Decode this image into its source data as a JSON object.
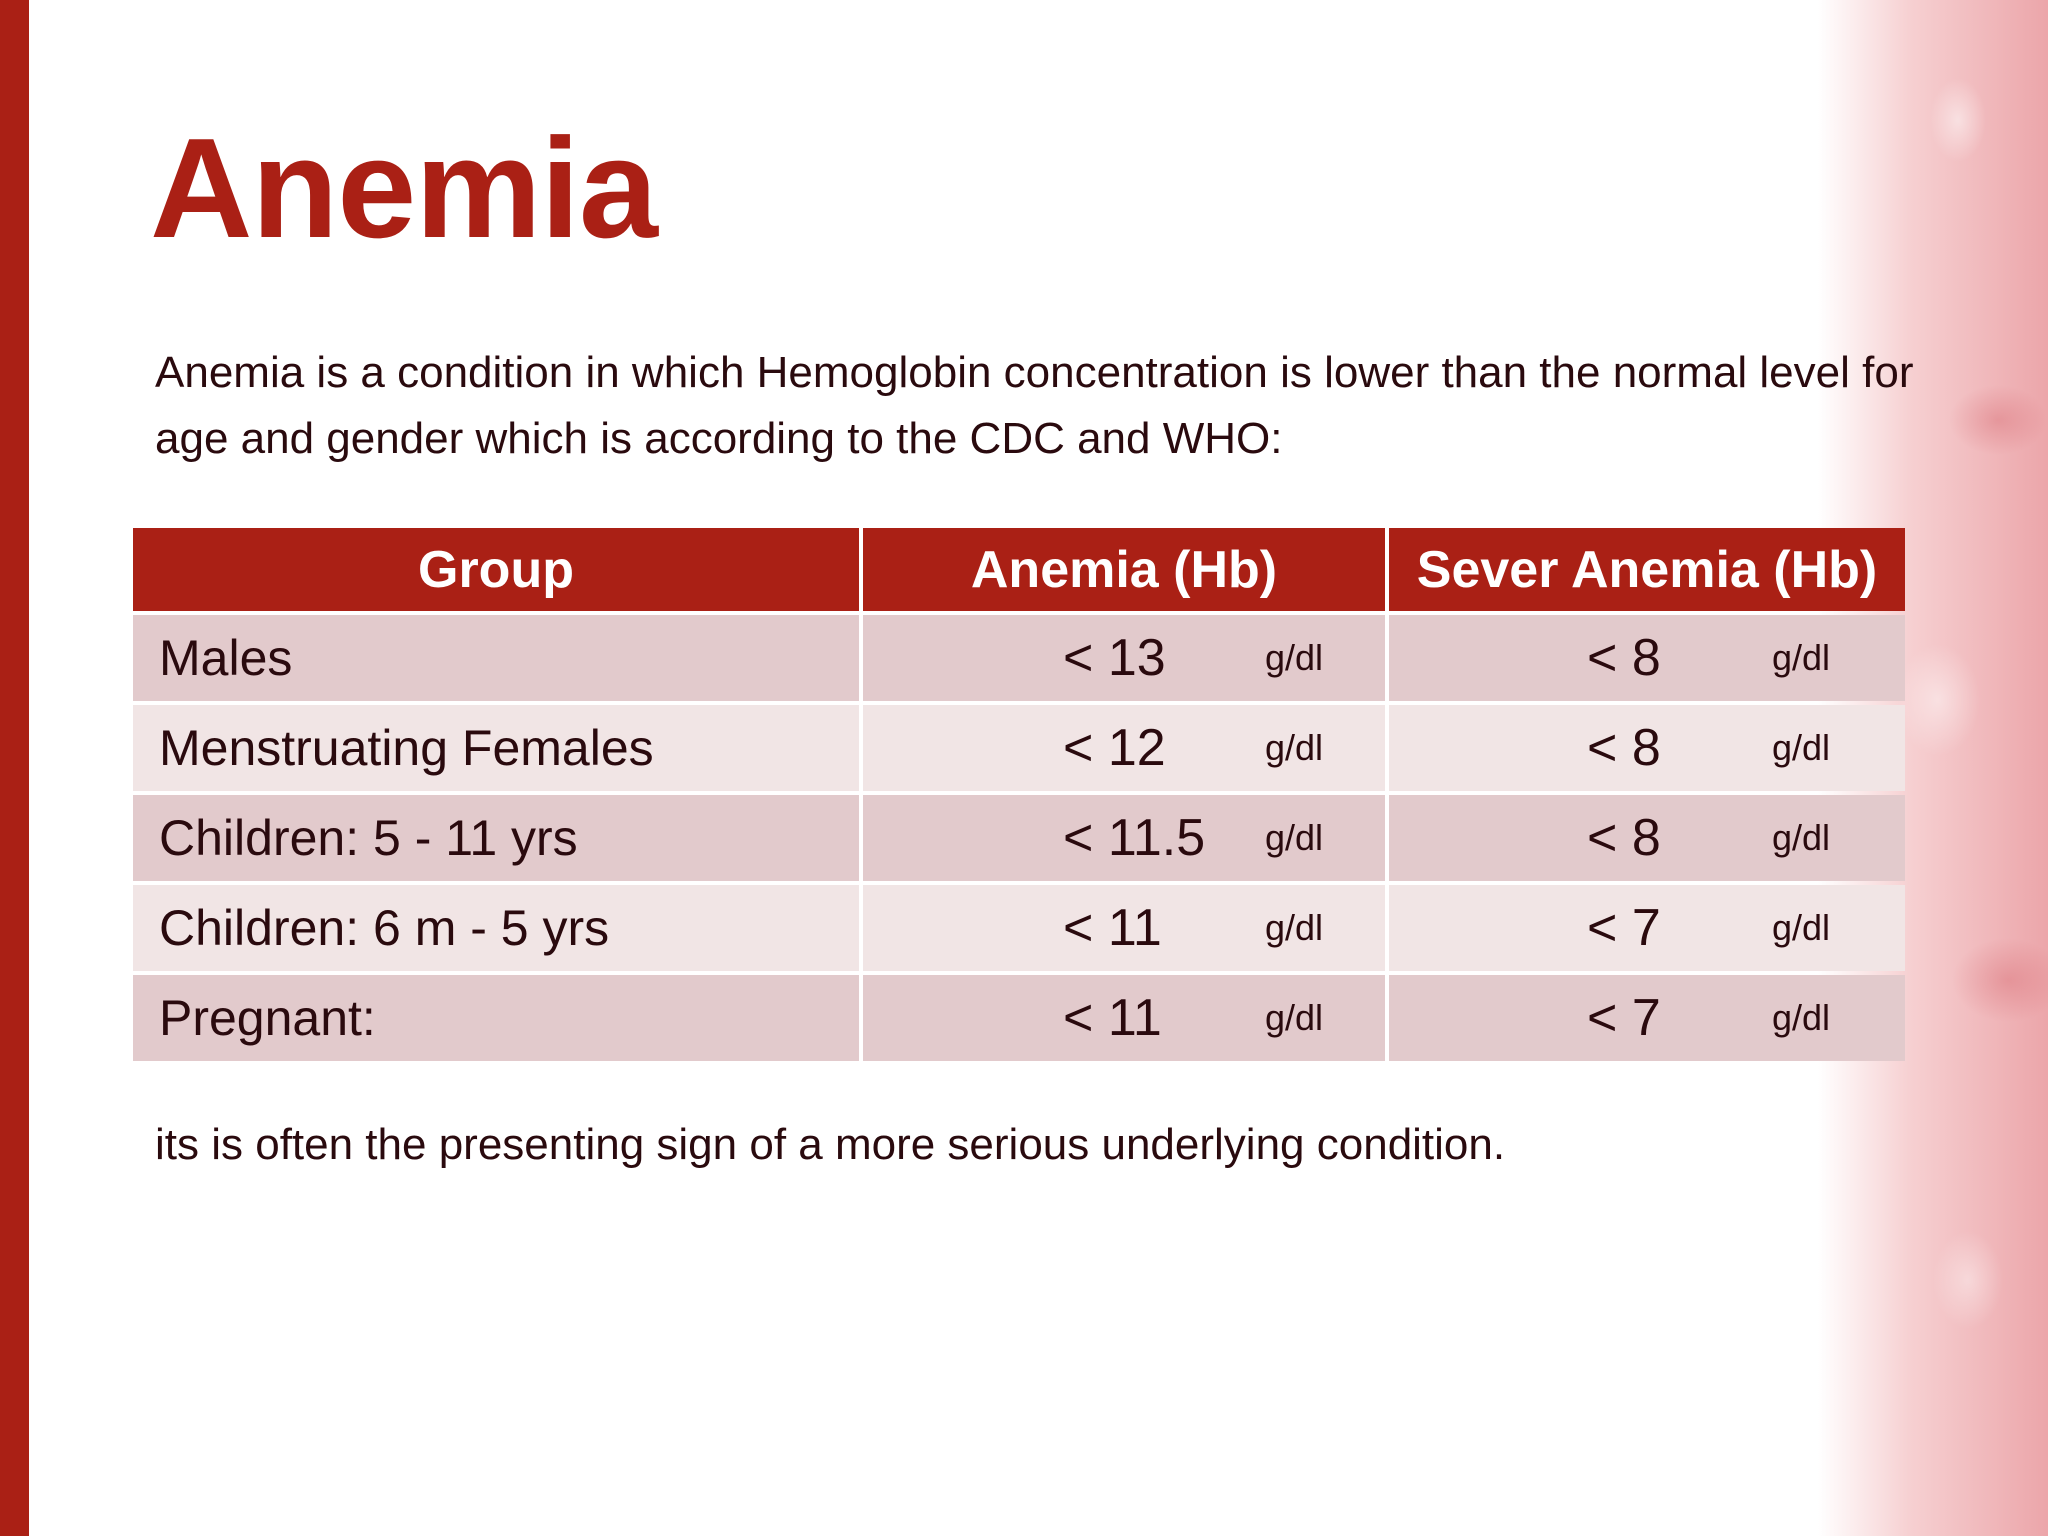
{
  "title": "Anemia",
  "intro": "Anemia is a condition in which Hemoglobin concentration is lower than the normal level for age and gender which is according to the CDC and WHO:",
  "table": {
    "headers": [
      "Group",
      "Anemia (Hb)",
      "Sever Anemia (Hb)"
    ],
    "rows": [
      {
        "group": "Males",
        "anemia": "< 13",
        "anemia_unit": "g/dl",
        "severe": "< 8",
        "severe_unit": "g/dl"
      },
      {
        "group": "Menstruating Females",
        "anemia": "< 12",
        "anemia_unit": "g/dl",
        "severe": "< 8",
        "severe_unit": "g/dl"
      },
      {
        "group": "Children: 5 - 11 yrs",
        "anemia": "< 11.5",
        "anemia_unit": "g/dl",
        "severe": "< 8",
        "severe_unit": "g/dl"
      },
      {
        "group": "Children: 6 m - 5 yrs",
        "anemia": "< 11",
        "anemia_unit": "g/dl",
        "severe": "< 7",
        "severe_unit": "g/dl"
      },
      {
        "group": "Pregnant:",
        "anemia": "< 11",
        "anemia_unit": "g/dl",
        "severe": "< 7",
        "severe_unit": "g/dl"
      }
    ]
  },
  "footer": "its is often the presenting sign of a more serious underlying condition.",
  "colors": {
    "accent": "#aa2015",
    "row_odd": "#e2cacc",
    "row_even": "#f1e5e5",
    "text": "#2a0a0e"
  }
}
